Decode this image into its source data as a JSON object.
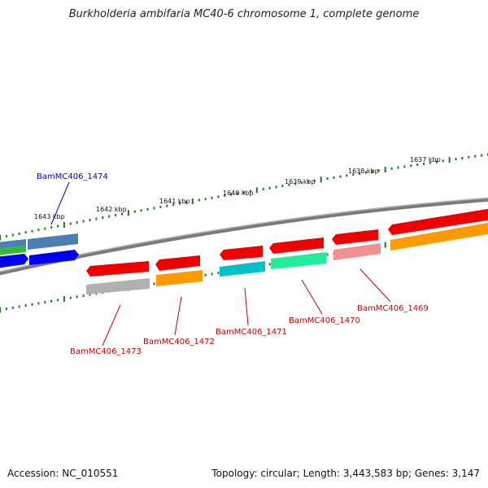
{
  "title": "Burkholderia ambifaria MC40-6 chromosome 1, complete genome",
  "accession": "Accession: NC_010551",
  "stats": "Topology: circular; Length: 3,443,583 bp; Genes: 3,147",
  "kbp_labels": [
    "1643 kbp",
    "1642 kbp",
    "1641 kbp",
    "1640 kbp",
    "1639 kbp",
    "1638 kbp",
    "1637 kbp"
  ],
  "gene_labels": [
    {
      "text": "BamMC406_1474",
      "color": "#0000cc"
    },
    {
      "text": "BamMC406_1473",
      "color": "#cc0000"
    },
    {
      "text": "BamMC406_1472",
      "color": "#cc0000"
    },
    {
      "text": "BamMC406_1471",
      "color": "#cc0000"
    },
    {
      "text": "BamMC406_1470",
      "color": "#cc0000"
    },
    {
      "text": "BamMC406_1469",
      "color": "#cc0000"
    }
  ],
  "colors": {
    "backbone": "#808080",
    "tick": "#1a7a1a",
    "red": "#ee0000",
    "blue": "#0000ee",
    "steelblue": "#4a7fb5",
    "green": "#33bb33",
    "gray": "#b0b0b0",
    "orange": "#ff9a00",
    "cyan": "#00c0c8",
    "springgreen": "#22ee99",
    "pink": "#f09090"
  }
}
